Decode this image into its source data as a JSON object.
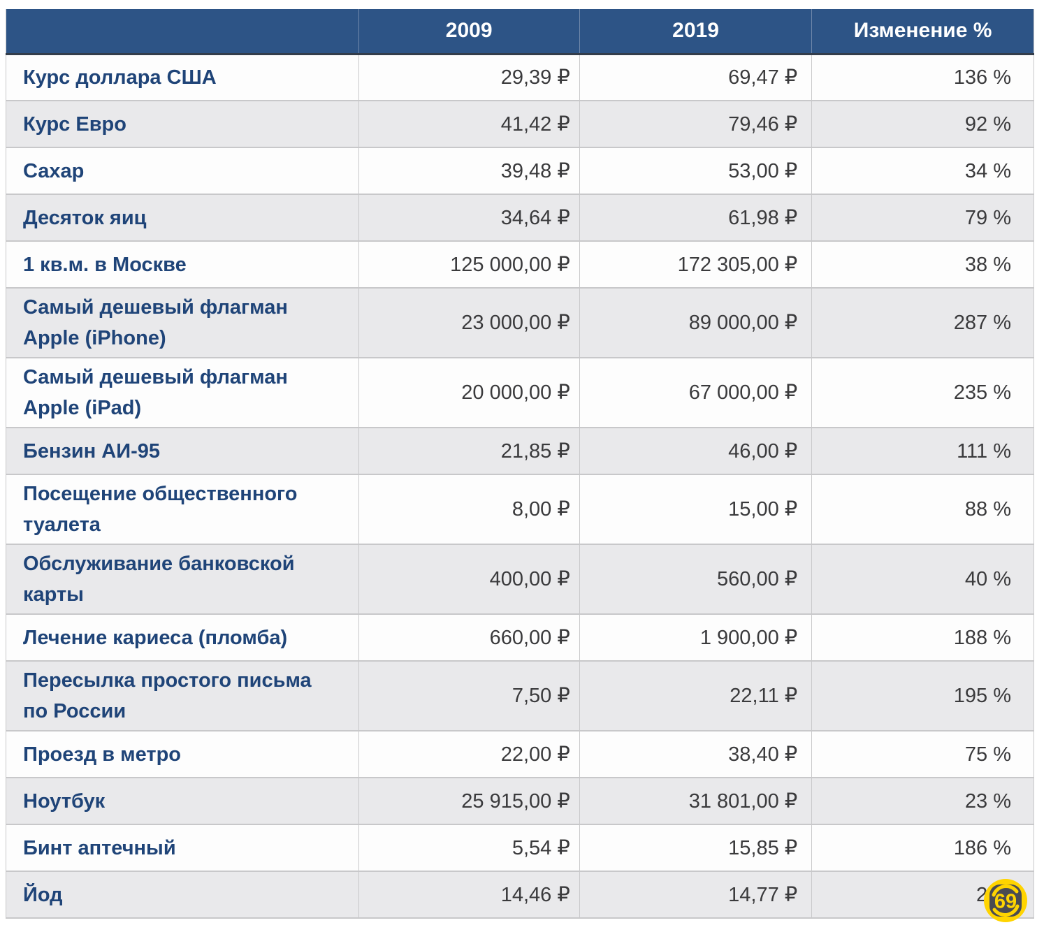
{
  "table": {
    "columns": [
      "",
      "2009",
      "2019",
      "Изменение %"
    ],
    "rows": [
      {
        "label": "Курс доллара США",
        "y2009": "29,39 ₽",
        "y2019": "69,47 ₽",
        "change": "136 %"
      },
      {
        "label": "Курс Евро",
        "y2009": "41,42 ₽",
        "y2019": "79,46 ₽",
        "change": "92 %"
      },
      {
        "label": "Сахар",
        "y2009": "39,48 ₽",
        "y2019": "53,00 ₽",
        "change": "34 %"
      },
      {
        "label": "Десяток яиц",
        "y2009": "34,64 ₽",
        "y2019": "61,98 ₽",
        "change": "79 %"
      },
      {
        "label": "1 кв.м. в Москве",
        "y2009": "125 000,00 ₽",
        "y2019": "172 305,00 ₽",
        "change": "38 %"
      },
      {
        "label": "Самый дешевый флагман\nApple (iPhone)",
        "y2009": "23 000,00 ₽",
        "y2019": "89 000,00 ₽",
        "change": "287 %"
      },
      {
        "label": "Самый дешевый флагман\nApple (iPad)",
        "y2009": "20 000,00 ₽",
        "y2019": "67 000,00 ₽",
        "change": "235 %"
      },
      {
        "label": "Бензин АИ-95",
        "y2009": "21,85 ₽",
        "y2019": "46,00 ₽",
        "change": "111 %"
      },
      {
        "label": "Посещение общественного\nтуалета",
        "y2009": "8,00 ₽",
        "y2019": "15,00 ₽",
        "change": "88 %"
      },
      {
        "label": "Обслуживание банковской\nкарты",
        "y2009": "400,00 ₽",
        "y2019": "560,00 ₽",
        "change": "40 %"
      },
      {
        "label": "Лечение кариеса (пломба)",
        "y2009": "660,00 ₽",
        "y2019": "1 900,00 ₽",
        "change": "188 %"
      },
      {
        "label": "Пересылка простого письма\nпо России",
        "y2009": "7,50 ₽",
        "y2019": "22,11 ₽",
        "change": "195 %"
      },
      {
        "label": "Проезд в метро",
        "y2009": "22,00 ₽",
        "y2019": "38,40 ₽",
        "change": "75 %"
      },
      {
        "label": "Ноутбук",
        "y2009": "25 915,00 ₽",
        "y2019": "31 801,00 ₽",
        "change": "23 %"
      },
      {
        "label": "Бинт аптечный",
        "y2009": "5,54 ₽",
        "y2019": "15,85 ₽",
        "change": "186 %"
      },
      {
        "label": "Йод",
        "y2009": "14,46 ₽",
        "y2019": "14,77 ₽",
        "change": "2 %"
      }
    ]
  },
  "chart_data": {
    "type": "table",
    "title": "",
    "categories": [
      "Курс доллара США",
      "Курс Евро",
      "Сахар",
      "Десяток яиц",
      "1 кв.м. в Москве",
      "Самый дешевый флагман Apple (iPhone)",
      "Самый дешевый флагман Apple (iPad)",
      "Бензин АИ-95",
      "Посещение общественного туалета",
      "Обслуживание банковской карты",
      "Лечение кариеса (пломба)",
      "Пересылка простого письма по России",
      "Проезд в метро",
      "Ноутбук",
      "Бинт аптечный",
      "Йод"
    ],
    "series": [
      {
        "name": "2009",
        "unit": "₽",
        "values": [
          29.39,
          41.42,
          39.48,
          34.64,
          125000.0,
          23000.0,
          20000.0,
          21.85,
          8.0,
          400.0,
          660.0,
          7.5,
          22.0,
          25915.0,
          5.54,
          14.46
        ]
      },
      {
        "name": "2019",
        "unit": "₽",
        "values": [
          69.47,
          79.46,
          53.0,
          61.98,
          172305.0,
          89000.0,
          67000.0,
          46.0,
          15.0,
          560.0,
          1900.0,
          22.11,
          38.4,
          31801.0,
          15.85,
          14.77
        ]
      },
      {
        "name": "Изменение %",
        "unit": "%",
        "values": [
          136,
          92,
          34,
          79,
          38,
          287,
          235,
          111,
          88,
          40,
          188,
          195,
          75,
          23,
          186,
          2
        ]
      }
    ]
  },
  "logo": {
    "text": "69"
  },
  "colors": {
    "page_bg": "#ffffff",
    "header_bg": "#2d5486",
    "header_text": "#ffffff",
    "header_divider": "#7189ab",
    "header_bottom": "#333d4b",
    "label_text": "#1f4478",
    "value_text": "#3a3a3c",
    "row_odd_bg": "#fdfdfd",
    "row_even_bg": "#e9e9eb",
    "grid_line": "#c8c8ca",
    "logo_ring": "#ffd400",
    "logo_face": "#4a4b52"
  }
}
